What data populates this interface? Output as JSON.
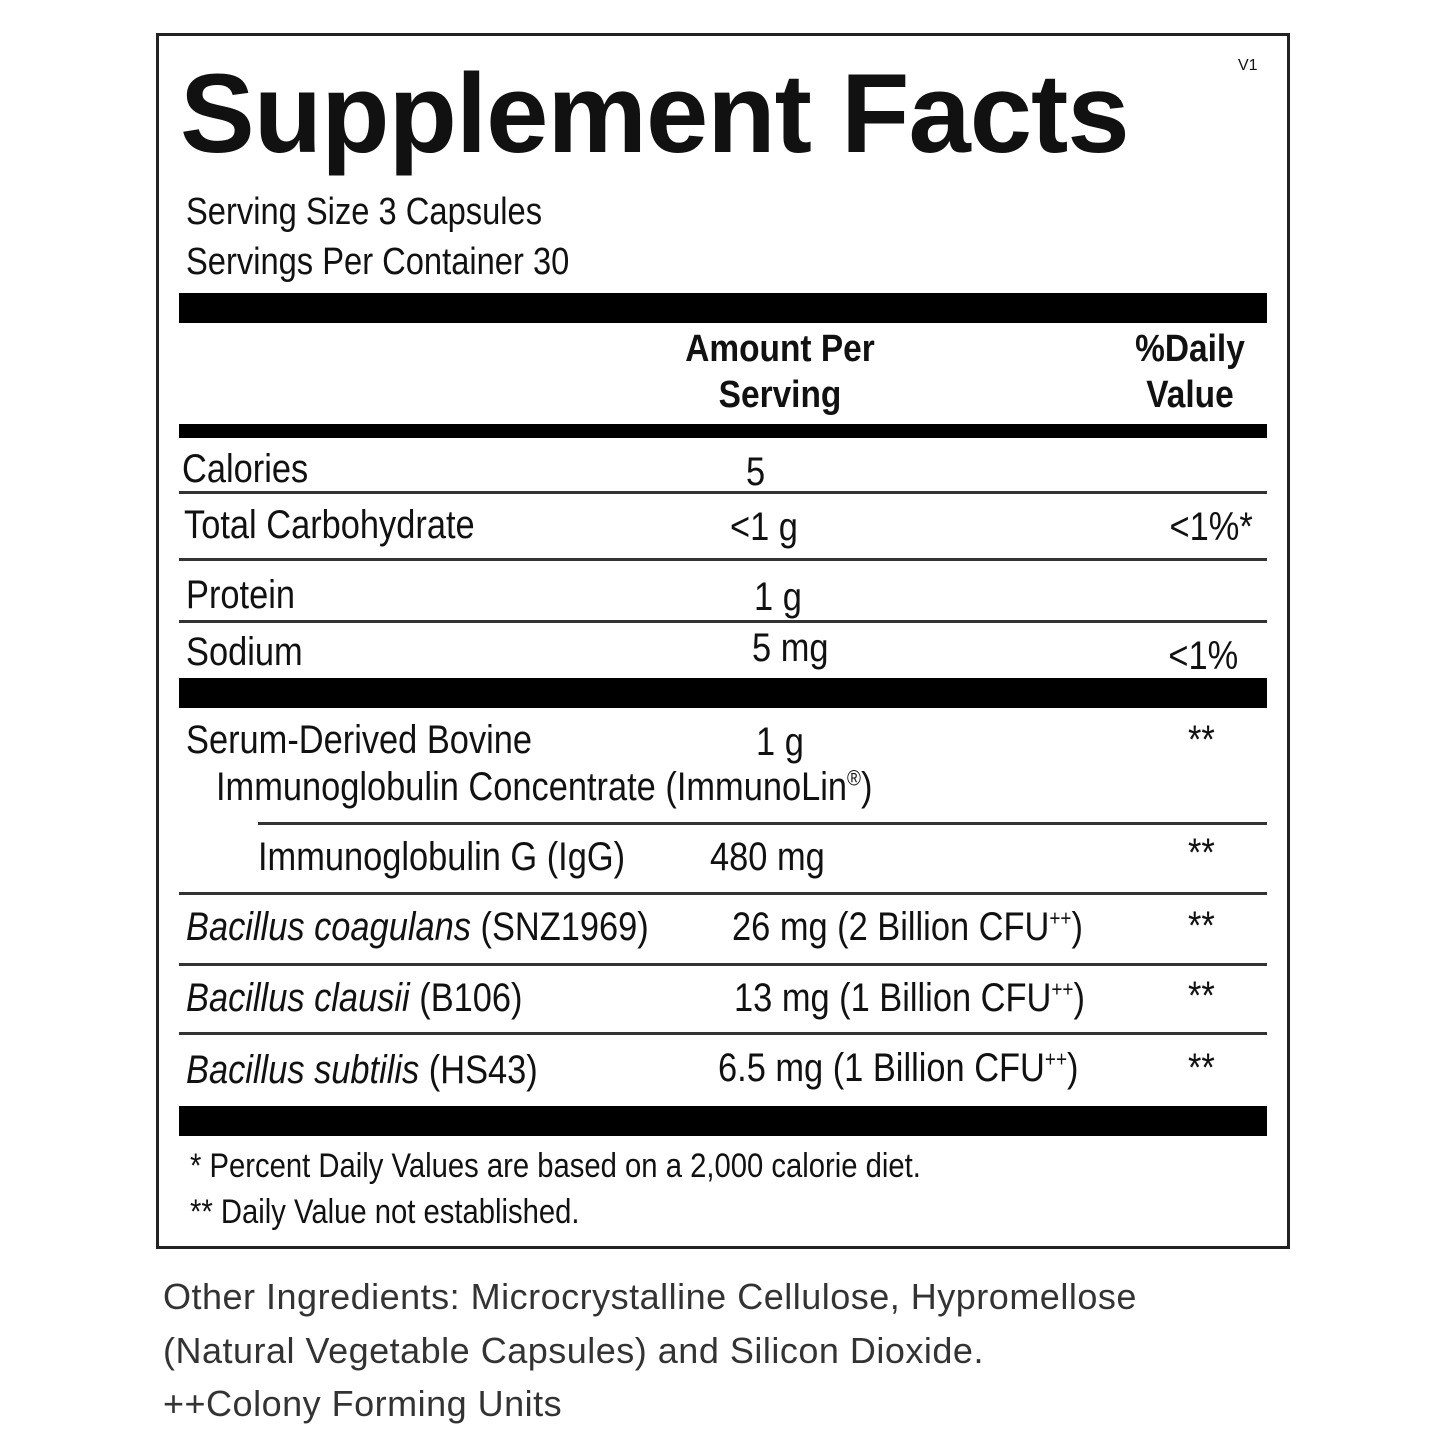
{
  "title": "Supplement Facts",
  "version": "V1",
  "serving_size": "Serving Size  3 Capsules",
  "servings_per_container": "Servings Per Container  30",
  "header": {
    "amount_line1": "Amount Per",
    "amount_line2": "Serving",
    "dv_line1": "%Daily",
    "dv_line2": "Value"
  },
  "rows": [
    {
      "name": "Calories",
      "amount": "5",
      "dv": ""
    },
    {
      "name": "Total Carbohydrate",
      "amount": "<1 g",
      "dv": "<1%*"
    },
    {
      "name": "Protein",
      "amount": "1 g",
      "dv": ""
    },
    {
      "name": "Sodium",
      "amount": "5 mg",
      "dv": "<1%"
    }
  ],
  "ingredients": {
    "serum_line1": "Serum-Derived Bovine",
    "serum_line2": "Immunoglobulin Concentrate (ImmunoLin",
    "serum_reg": "®",
    "serum_close": ")",
    "serum_amount": "1 g",
    "serum_dv": "**",
    "igg_name": "Immunoglobulin G (IgG)",
    "igg_amount": "480 mg",
    "igg_dv": "**",
    "b1_species": "Bacillus coagulans",
    "b1_strain": " (SNZ1969)",
    "b1_amount": "26 mg (2 Billion CFU",
    "b1_dv": "**",
    "b2_species": "Bacillus clausii",
    "b2_strain": " (B106)",
    "b2_amount": "13 mg (1 Billion CFU",
    "b2_dv": "**",
    "b3_species": "Bacillus subtilis",
    "b3_strain": " (HS43)",
    "b3_amount": "6.5 mg (1 Billion CFU",
    "b3_dv": "**",
    "plusplus": "++",
    "close_paren": ")"
  },
  "footnotes": {
    "note1": "* Percent Daily Values are based on a 2,000 calorie diet.",
    "note2": "** Daily Value not established."
  },
  "other_ingredients": {
    "line1": "Other Ingredients: Microcrystalline Cellulose, Hypromellose",
    "line2": "(Natural Vegetable Capsules) and Silicon Dioxide.",
    "line3": "++Colony Forming Units"
  }
}
